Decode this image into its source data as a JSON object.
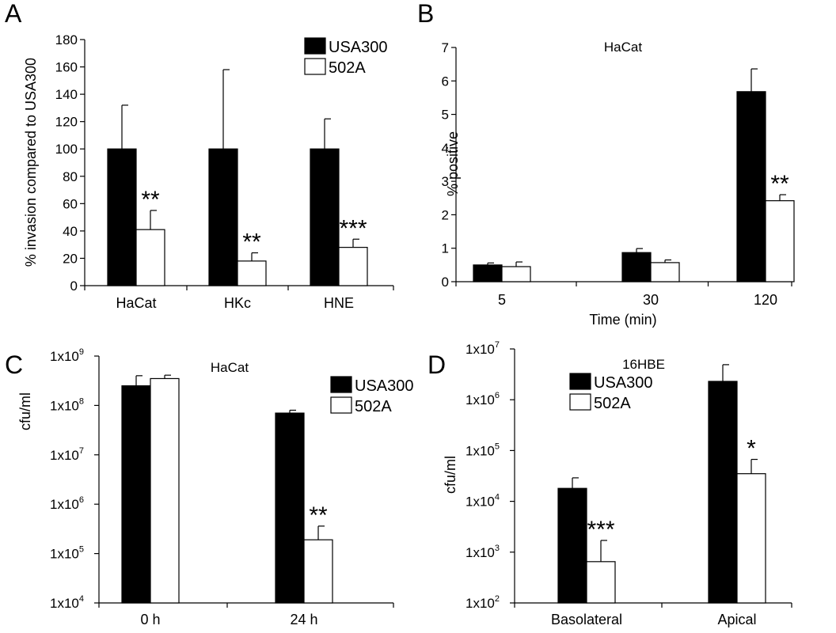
{
  "chart_data": [
    {
      "panel": "A",
      "type": "bar",
      "title": "",
      "xlabel": "",
      "ylabel": "% invasion compared to USA300",
      "scale": "linear",
      "ylim": [
        0,
        180
      ],
      "yticks": [
        "0",
        "20",
        "40",
        "60",
        "80",
        "100",
        "120",
        "140",
        "160",
        "180"
      ],
      "yticks_values": [
        0,
        20,
        40,
        60,
        80,
        100,
        120,
        140,
        160,
        180
      ],
      "categories": [
        "HaCat",
        "HKc",
        "HNE"
      ],
      "legend": true,
      "legend_position": "top-right",
      "series": [
        {
          "name": "USA300",
          "color": "#000000",
          "values": [
            100,
            100,
            100
          ],
          "errors": [
            32,
            58,
            22
          ]
        },
        {
          "name": "502A",
          "color": "#ffffff",
          "values": [
            41,
            18,
            28
          ],
          "errors": [
            14,
            6,
            6
          ]
        }
      ],
      "annotations": [
        {
          "category": 0,
          "series": 1,
          "text": "**"
        },
        {
          "category": 1,
          "series": 1,
          "text": "**"
        },
        {
          "category": 2,
          "series": 1,
          "text": "***"
        }
      ]
    },
    {
      "panel": "B",
      "type": "bar",
      "title": "HaCat",
      "xlabel": "Time (min)",
      "ylabel": "% positive",
      "scale": "linear",
      "ylim": [
        0,
        7
      ],
      "yticks": [
        "0",
        "1",
        "2",
        "3",
        "4",
        "5",
        "6",
        "7"
      ],
      "yticks_values": [
        0,
        1,
        2,
        3,
        4,
        5,
        6,
        7
      ],
      "categories": [
        "5",
        "30",
        "120"
      ],
      "legend": false,
      "series": [
        {
          "name": "USA300",
          "color": "#000000",
          "values": [
            0.5,
            0.87,
            5.68
          ],
          "errors": [
            0.06,
            0.12,
            0.68
          ]
        },
        {
          "name": "502A",
          "color": "#ffffff",
          "values": [
            0.45,
            0.57,
            2.42
          ],
          "errors": [
            0.14,
            0.08,
            0.18
          ]
        }
      ],
      "annotations": [
        {
          "category": 2,
          "series": 1,
          "text": "**"
        }
      ]
    },
    {
      "panel": "C",
      "type": "bar",
      "title": "HaCat",
      "xlabel": "",
      "ylabel": "cfu/ml",
      "scale": "log",
      "ylim": [
        10000,
        1000000000
      ],
      "yticks_base": [
        "1x10",
        "1x10",
        "1x10",
        "1x10",
        "1x10",
        "1x10"
      ],
      "yticks_exp": [
        "4",
        "5",
        "6",
        "7",
        "8",
        "9"
      ],
      "yticks_values": [
        10000,
        100000,
        1000000,
        10000000,
        100000000,
        1000000000
      ],
      "categories": [
        "0 h",
        "24 h"
      ],
      "legend": true,
      "legend_position": "right",
      "series": [
        {
          "name": "USA300",
          "color": "#000000",
          "values": [
            250000000,
            70000000
          ],
          "errors": [
            150000000,
            10000000
          ]
        },
        {
          "name": "502A",
          "color": "#ffffff",
          "values": [
            350000000,
            190000
          ],
          "errors": [
            60000000,
            170000
          ]
        }
      ],
      "annotations": [
        {
          "category": 1,
          "series": 1,
          "text": "**"
        }
      ]
    },
    {
      "panel": "D",
      "type": "bar",
      "title": "16HBE",
      "xlabel": "",
      "ylabel": "cfu/ml",
      "scale": "log",
      "ylim": [
        100,
        10000000
      ],
      "yticks_base": [
        "1x10",
        "1x10",
        "1x10",
        "1x10",
        "1x10",
        "1x10"
      ],
      "yticks_exp": [
        "2",
        "3",
        "4",
        "5",
        "6",
        "7"
      ],
      "yticks_values": [
        100,
        1000,
        10000,
        100000,
        1000000,
        10000000
      ],
      "categories": [
        "Basolateral",
        "Apical"
      ],
      "legend": true,
      "legend_position": "top-left",
      "series": [
        {
          "name": "USA300",
          "color": "#000000",
          "values": [
            18000,
            2300000
          ],
          "errors": [
            11000,
            2600000
          ]
        },
        {
          "name": "502A",
          "color": "#ffffff",
          "values": [
            650,
            35000
          ],
          "errors": [
            1050,
            32000
          ]
        }
      ],
      "annotations": [
        {
          "category": 0,
          "series": 1,
          "text": "***"
        },
        {
          "category": 1,
          "series": 1,
          "text": "*"
        }
      ]
    }
  ]
}
